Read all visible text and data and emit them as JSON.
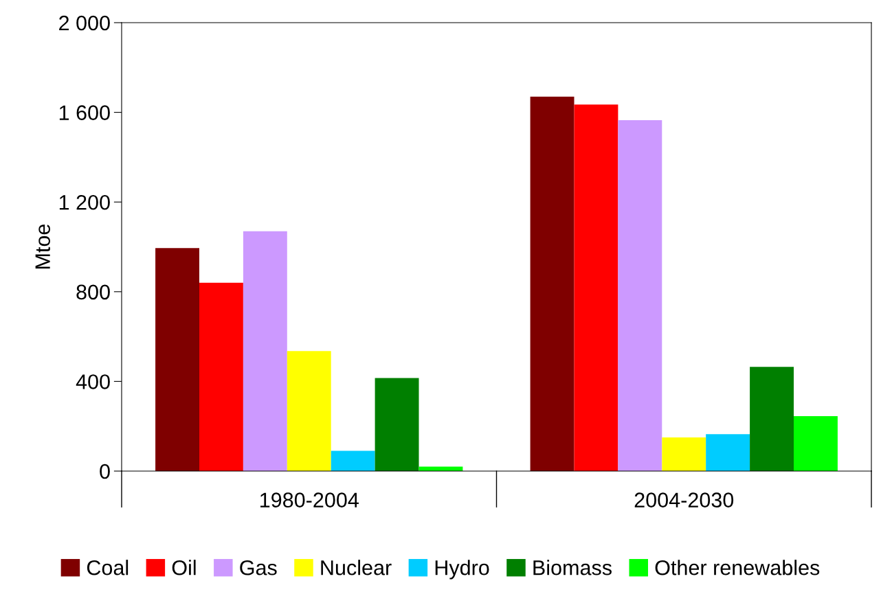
{
  "chart_data": {
    "type": "bar",
    "ylabel": "Mtoe",
    "categories": [
      "1980-2004",
      "2004-2030"
    ],
    "series": [
      {
        "name": "Coal",
        "color": "#7f0000",
        "values": [
          995,
          1670
        ]
      },
      {
        "name": "Oil",
        "color": "#ff0000",
        "values": [
          840,
          1635
        ]
      },
      {
        "name": "Gas",
        "color": "#cc99ff",
        "values": [
          1070,
          1565
        ]
      },
      {
        "name": "Nuclear",
        "color": "#ffff00",
        "values": [
          535,
          150
        ]
      },
      {
        "name": "Hydro",
        "color": "#00ccff",
        "values": [
          90,
          165
        ]
      },
      {
        "name": "Biomass",
        "color": "#007f00",
        "values": [
          415,
          465
        ]
      },
      {
        "name": "Other renewables",
        "color": "#00ff00",
        "values": [
          20,
          245
        ]
      }
    ],
    "ylim": [
      0,
      2000
    ],
    "yticks": [
      0,
      400,
      800,
      {
        "value": 1200,
        "label": "1 200"
      },
      {
        "value": 1600,
        "label": "1 600"
      },
      {
        "value": 2000,
        "label": "2 000"
      }
    ],
    "grid": false,
    "legend": "bottom"
  }
}
